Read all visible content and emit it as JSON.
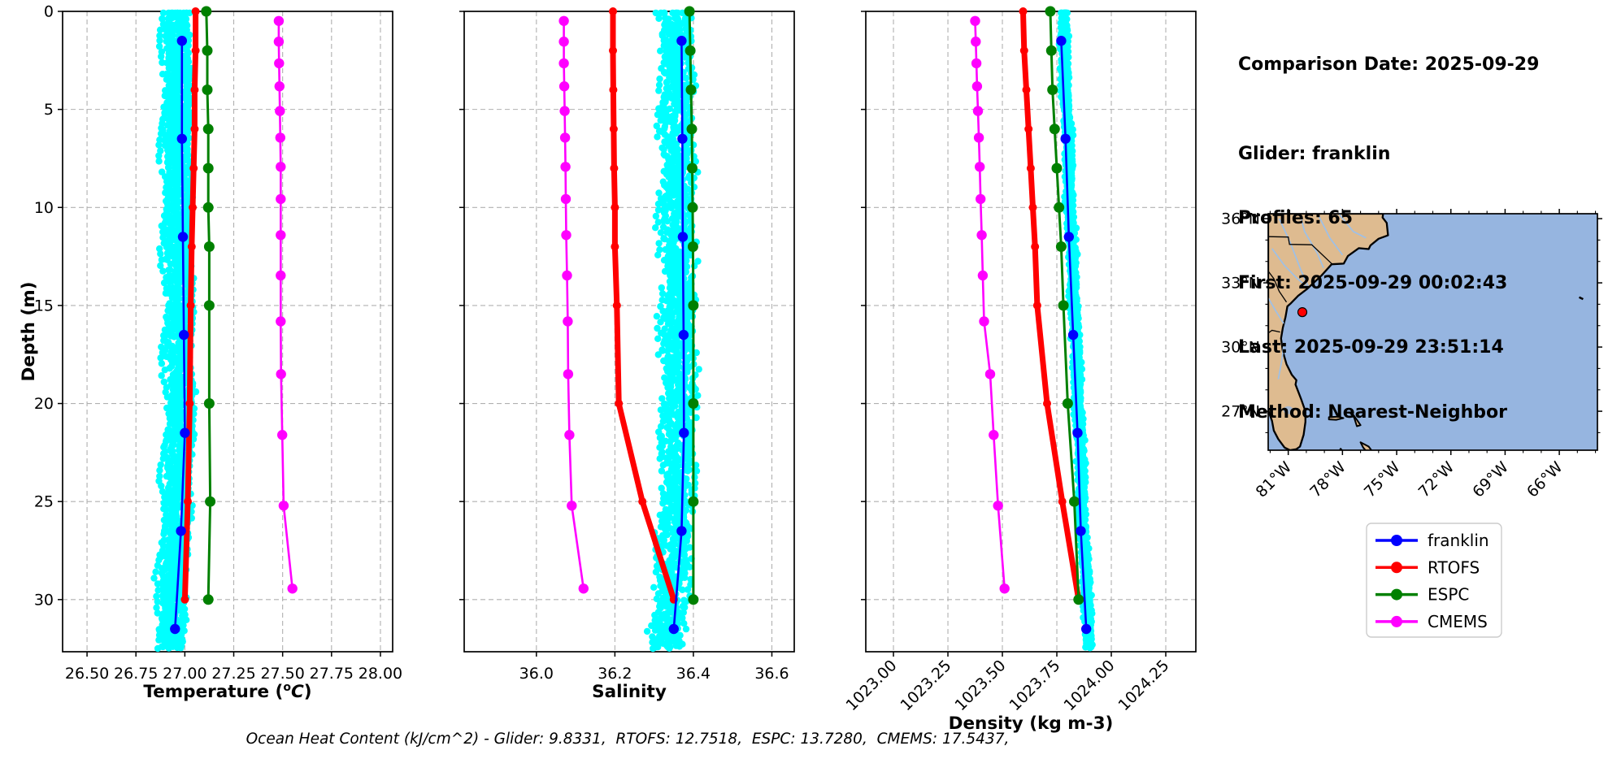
{
  "header": {
    "comparison": "Comparison Date: 2025-09-29",
    "lines": [
      "Glider: franklin",
      "Profiles: 65",
      "First: 2025-09-29 00:02:43",
      "Last: 2025-09-29 23:51:14",
      "Method: Nearest-Neighbor"
    ]
  },
  "caption": {
    "text": "Ocean Heat Content (kJ/cm^2) - Glider: 9.8331,  RTOFS: 12.7518,  ESPC: 13.7280,  CMEMS: 17.5437,"
  },
  "ocean_heat_content": {
    "glider": 9.8331,
    "rtofs": 12.7518,
    "espc": 13.728,
    "cmems": 17.5437
  },
  "chart_data": {
    "type": "line",
    "ylabel": "Depth (m)",
    "ylim": [
      0,
      32.66
    ],
    "yticks": [
      0,
      5,
      10,
      15,
      20,
      25,
      30
    ],
    "ytick_labels": [
      "0",
      "5",
      "10",
      "15",
      "20",
      "25",
      "30"
    ],
    "grid": true,
    "scatter_color": "#00ffff",
    "depth_levels": {
      "franklin": [
        1.5,
        6.5,
        11.5,
        16.5,
        21.5,
        26.5,
        31.5
      ],
      "RTOFS": [
        0,
        2,
        4,
        6,
        8,
        10,
        12,
        15,
        20,
        25,
        30
      ],
      "ESPC": [
        0,
        2,
        4,
        6,
        8,
        10,
        12,
        15,
        20,
        25,
        30
      ],
      "CMEMS": [
        0.49,
        1.54,
        2.65,
        3.82,
        5.08,
        6.44,
        7.93,
        9.57,
        11.41,
        13.47,
        15.81,
        18.5,
        21.6,
        25.21,
        29.44
      ]
    },
    "legend": [
      {
        "label": "franklin",
        "color": "#0000ff"
      },
      {
        "label": "RTOFS",
        "color": "#ff0000"
      },
      {
        "label": "ESPC",
        "color": "#008000"
      },
      {
        "label": "CMEMS",
        "color": "#ff00ff"
      }
    ],
    "panels": [
      {
        "id": "temperature",
        "xlabel": "Temperature (°C)",
        "xlabel_parts": [
          {
            "t": "Temperature ("
          },
          {
            "sup": "o"
          },
          {
            "it": "C"
          },
          {
            "t": ")"
          }
        ],
        "xlim": [
          26.375,
          28.0625
        ],
        "xticks": [
          26.5,
          26.75,
          27.0,
          27.25,
          27.5,
          27.75,
          28.0
        ],
        "xtick_labels": [
          "26.50",
          "26.75",
          "27.00",
          "27.25",
          "27.50",
          "27.75",
          "28.00"
        ],
        "rotate_xticks": false,
        "series": {
          "franklin": [
            26.985,
            26.985,
            26.99,
            26.995,
            27.0,
            26.98,
            26.95
          ],
          "RTOFS": [
            27.055,
            27.055,
            27.05,
            27.05,
            27.045,
            27.04,
            27.035,
            27.03,
            27.025,
            27.015,
            27.0
          ],
          "ESPC": [
            27.11,
            27.115,
            27.115,
            27.12,
            27.12,
            27.12,
            27.125,
            27.125,
            27.125,
            27.13,
            27.12
          ],
          "CMEMS": [
            27.48,
            27.48,
            27.482,
            27.484,
            27.486,
            27.488,
            27.49,
            27.49,
            27.49,
            27.49,
            27.49,
            27.492,
            27.498,
            27.505,
            27.55
          ]
        },
        "scatter": {
          "offset": -0.025,
          "sigma": 0.033,
          "jitter": 0.007
        }
      },
      {
        "id": "salinity",
        "xlabel": "Salinity",
        "xlim": [
          35.816,
          36.657
        ],
        "xticks": [
          36.0,
          36.2,
          36.4,
          36.6
        ],
        "xtick_labels": [
          "36.0",
          "36.2",
          "36.4",
          "36.6"
        ],
        "rotate_xticks": false,
        "series": {
          "franklin": [
            36.37,
            36.372,
            36.373,
            36.375,
            36.376,
            36.37,
            36.35
          ],
          "RTOFS": [
            36.195,
            36.195,
            36.196,
            36.197,
            36.198,
            36.2,
            36.2,
            36.205,
            36.21,
            36.27,
            36.35
          ],
          "ESPC": [
            36.39,
            36.392,
            36.394,
            36.396,
            36.397,
            36.398,
            36.399,
            36.4,
            36.4,
            36.4,
            36.4
          ],
          "CMEMS": [
            36.07,
            36.07,
            36.07,
            36.071,
            36.072,
            36.073,
            36.074,
            36.075,
            36.076,
            36.078,
            36.08,
            36.081,
            36.084,
            36.09,
            36.12
          ]
        },
        "scatter": {
          "offset": -0.02,
          "sigma": 0.022,
          "jitter": 0.006
        }
      },
      {
        "id": "density",
        "xlabel": "Density (kg m-3)",
        "xlim": [
          1022.873,
          1024.388
        ],
        "xticks": [
          1023.0,
          1023.25,
          1023.5,
          1023.75,
          1024.0,
          1024.25
        ],
        "xtick_labels": [
          "1023.00",
          "1023.25",
          "1023.50",
          "1023.75",
          "1024.00",
          "1024.25"
        ],
        "rotate_xticks": true,
        "series": {
          "franklin": [
            1023.77,
            1023.79,
            1023.805,
            1023.825,
            1023.845,
            1023.86,
            1023.885
          ],
          "RTOFS": [
            1023.595,
            1023.6,
            1023.61,
            1023.62,
            1023.63,
            1023.64,
            1023.65,
            1023.66,
            1023.705,
            1023.775,
            1023.85
          ],
          "ESPC": [
            1023.72,
            1023.725,
            1023.73,
            1023.74,
            1023.75,
            1023.76,
            1023.77,
            1023.78,
            1023.8,
            1023.83,
            1023.85
          ],
          "CMEMS": [
            1023.375,
            1023.378,
            1023.381,
            1023.384,
            1023.388,
            1023.392,
            1023.396,
            1023.4,
            1023.405,
            1023.41,
            1023.416,
            1023.444,
            1023.46,
            1023.48,
            1023.51
          ]
        },
        "scatter": {
          "offset": 0.012,
          "sigma": 0.012,
          "jitter": 0.004
        }
      }
    ]
  },
  "map": {
    "lat_tick_vals": [
      36,
      33,
      30,
      27
    ],
    "lat_tick_labels": [
      "36°N",
      "33°N",
      "30°N",
      "27°N"
    ],
    "lon_tick_vals": [
      -81,
      -78,
      -75,
      -72,
      -69,
      -66
    ],
    "lon_tick_labels": [
      "81°W",
      "78°W",
      "75°W",
      "72°W",
      "69°W",
      "66°W"
    ],
    "marker": {
      "lon": -80.22,
      "lat": 31.63,
      "color": "#ff0000"
    },
    "land_color": "#debb90",
    "ocean_color": "#96b5e0",
    "river_color": "#9dc0e8",
    "lake_color": "#a8b8d0"
  }
}
